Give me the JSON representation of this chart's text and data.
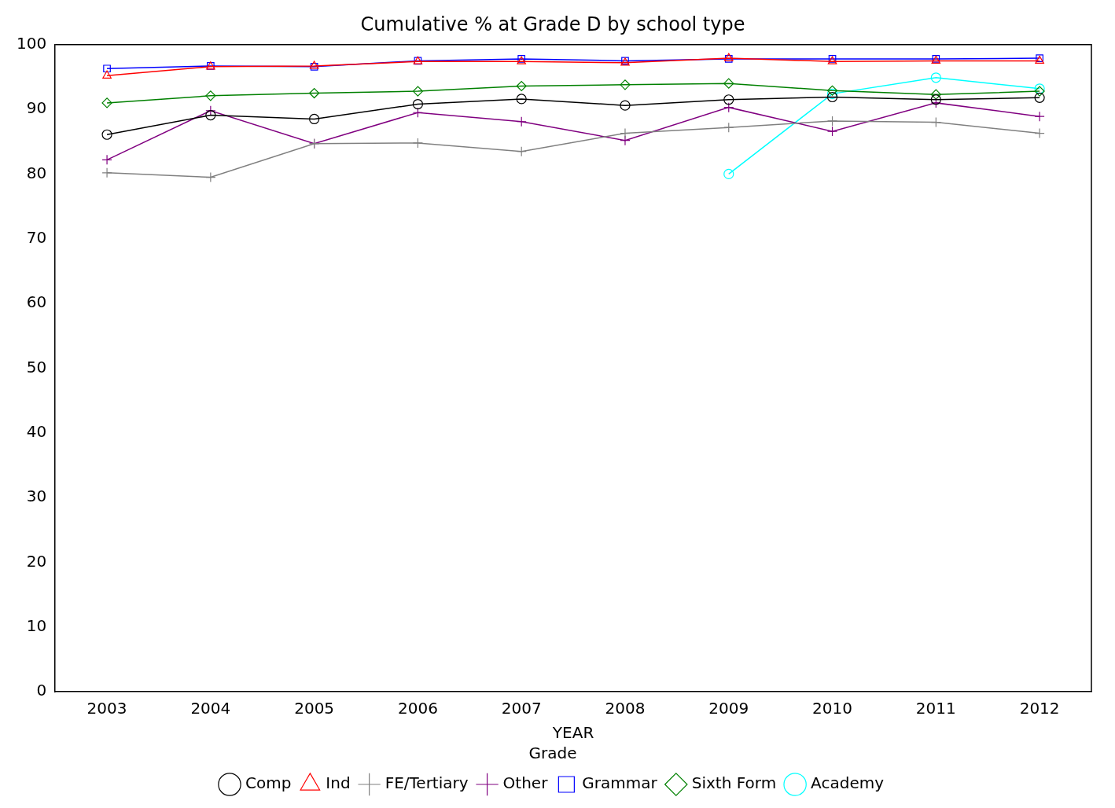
{
  "chart_data": {
    "type": "line",
    "title": "Cumulative % at Grade D by school type",
    "xlabel": "YEAR",
    "legend_title": "Grade",
    "legend": "bottom",
    "grid": false,
    "categories": [
      "2003",
      "2004",
      "2005",
      "2006",
      "2007",
      "2008",
      "2009",
      "2010",
      "2011",
      "2012"
    ],
    "ylim": [
      0,
      100
    ],
    "yticks": [
      0,
      10,
      20,
      30,
      40,
      50,
      60,
      70,
      80,
      90,
      100
    ],
    "series": [
      {
        "name": "Comp",
        "color": "#000000",
        "marker": "circle",
        "values": [
          86.1,
          89.1,
          88.5,
          90.8,
          91.6,
          90.6,
          91.5,
          91.9,
          91.5,
          91.8
        ]
      },
      {
        "name": "Ind",
        "color": "#ff0000",
        "marker": "triangle",
        "values": [
          95.2,
          96.6,
          96.7,
          97.4,
          97.4,
          97.2,
          97.9,
          97.4,
          97.5,
          97.5
        ]
      },
      {
        "name": "FE/Tertiary",
        "color": "#808080",
        "marker": "cross",
        "values": [
          80.2,
          79.5,
          84.7,
          84.8,
          83.5,
          86.3,
          87.2,
          88.2,
          88.0,
          86.3
        ]
      },
      {
        "name": "Other",
        "color": "#800080",
        "marker": "cross",
        "values": [
          82.2,
          89.8,
          84.7,
          89.5,
          88.1,
          85.2,
          90.3,
          86.6,
          91.0,
          88.9
        ]
      },
      {
        "name": "Grammar",
        "color": "#0000ff",
        "marker": "square",
        "values": [
          96.3,
          96.7,
          96.6,
          97.5,
          97.8,
          97.5,
          97.8,
          97.8,
          97.8,
          97.9
        ]
      },
      {
        "name": "Sixth Form",
        "color": "#008000",
        "marker": "diamond",
        "values": [
          91.0,
          92.1,
          92.5,
          92.8,
          93.6,
          93.8,
          94.0,
          92.9,
          92.3,
          92.8
        ]
      },
      {
        "name": "Academy",
        "color": "#00ffff",
        "marker": "circle",
        "values": [
          null,
          null,
          null,
          null,
          null,
          null,
          80.0,
          92.4,
          94.9,
          93.2
        ]
      }
    ]
  }
}
